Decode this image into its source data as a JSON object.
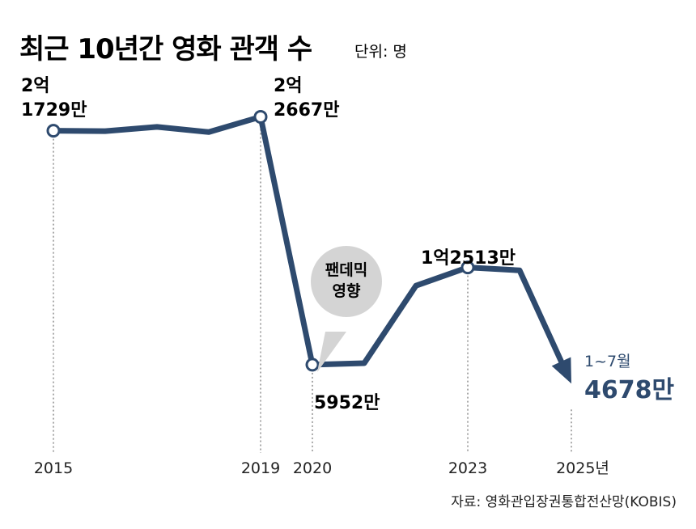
{
  "header": {
    "title": "최근 10년간 영화 관객 수",
    "unit": "단위: 명"
  },
  "source": "자료: 영화관입장권통합전산망(KOBIS)",
  "accent_color": "#2e4a6e",
  "chart_data": {
    "type": "line",
    "title": "최근 10년간 영화 관객 수",
    "unit_label": "단위: 명",
    "x": [
      2015,
      2016,
      2017,
      2018,
      2019,
      2020,
      2021,
      2022,
      2023,
      2024,
      2025
    ],
    "values": [
      217290000,
      217030000,
      219870000,
      216390000,
      226670000,
      59520000,
      60530000,
      112810000,
      125130000,
      123130000,
      46780000
    ],
    "ylim": [
      0,
      240000000
    ],
    "grid": false,
    "x_ticks": [
      {
        "x": 2015,
        "label": "2015"
      },
      {
        "x": 2019,
        "label": "2019"
      },
      {
        "x": 2020,
        "label": "2020"
      },
      {
        "x": 2023,
        "label": "2023"
      },
      {
        "x": 2025,
        "label": "2025년"
      }
    ],
    "markers": [
      2015,
      2019,
      2020,
      2023
    ],
    "data_labels": [
      {
        "x": 2015,
        "lines": [
          "2억",
          "1729만"
        ]
      },
      {
        "x": 2019,
        "lines": [
          "2억",
          "2667만"
        ]
      },
      {
        "x": 2020,
        "lines": [
          "5952만"
        ]
      },
      {
        "x": 2023,
        "lines": [
          "1억2513만"
        ]
      },
      {
        "x": 2025,
        "lines": [
          "1~7월",
          "4678만"
        ]
      }
    ],
    "annotation": {
      "x": 2020,
      "lines": [
        "팬데믹",
        "영향"
      ]
    }
  }
}
